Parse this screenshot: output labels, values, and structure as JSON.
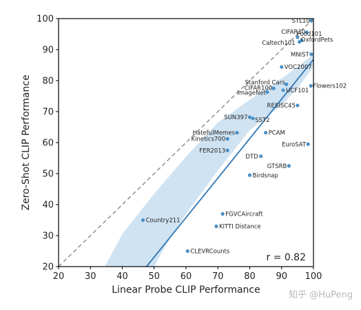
{
  "chart_data": {
    "type": "scatter",
    "xlabel": "Linear Probe CLIP Performance",
    "ylabel": "Zero-Shot CLIP Performance",
    "xlim": [
      20,
      100
    ],
    "ylim": [
      20,
      100
    ],
    "xticks": [
      "20",
      "30",
      "40",
      "50",
      "60",
      "70",
      "80",
      "90",
      "100"
    ],
    "yticks": [
      "20",
      "30",
      "40",
      "50",
      "60",
      "70",
      "80",
      "90",
      "100"
    ],
    "grid": false,
    "annotation": "r = 0.82",
    "reference_line": {
      "style": "dashed",
      "color": "#888888",
      "from": [
        20,
        20
      ],
      "to": [
        100,
        100
      ]
    },
    "fit_line": {
      "color": "#2f77b4",
      "from": [
        47.6,
        20
      ],
      "to": [
        100,
        86.8
      ]
    },
    "confidence_band": {
      "color": "#a9cce8",
      "upper": [
        [
          34.5,
          20
        ],
        [
          40,
          30.5
        ],
        [
          50,
          43.5
        ],
        [
          60,
          55.5
        ],
        [
          70,
          66.5
        ],
        [
          80,
          73.8
        ],
        [
          90,
          80.7
        ],
        [
          95,
          84.5
        ],
        [
          100,
          88.5
        ]
      ],
      "lower": [
        [
          100,
          84.5
        ],
        [
          95,
          77.5
        ],
        [
          90,
          72
        ],
        [
          80,
          64
        ],
        [
          70,
          51
        ],
        [
          60,
          37
        ],
        [
          55,
          29
        ],
        [
          51,
          22
        ],
        [
          50,
          20
        ]
      ]
    },
    "point_color": "#4a90c7",
    "points": [
      {
        "label": "STL10",
        "x": 99.3,
        "y": 99.3
      },
      {
        "label": "CIFAR10",
        "x": 97.9,
        "y": 95.6
      },
      {
        "label": "Food101",
        "x": 95.0,
        "y": 94.0
      },
      {
        "label": "OxfordPets",
        "x": 96.3,
        "y": 93.0
      },
      {
        "label": "Caltech101",
        "x": 95.6,
        "y": 92.5
      },
      {
        "label": "MNIST",
        "x": 99.3,
        "y": 88.5
      },
      {
        "label": "VOC2007",
        "x": 90.0,
        "y": 84.4
      },
      {
        "label": "Stanford Cars",
        "x": 91.5,
        "y": 78.8
      },
      {
        "label": "Flowers102",
        "x": 99.2,
        "y": 78.3
      },
      {
        "label": "CIFAR100",
        "x": 87.5,
        "y": 77.5
      },
      {
        "label": "UCF101",
        "x": 90.5,
        "y": 76.9
      },
      {
        "label": "ImageNet",
        "x": 85.5,
        "y": 76.3
      },
      {
        "label": "RESISC45",
        "x": 95.0,
        "y": 72.0
      },
      {
        "label": "SUN397",
        "x": 80.0,
        "y": 68.2
      },
      {
        "label": "SST2",
        "x": 81.0,
        "y": 67.8
      },
      {
        "label": "HatefulMemes",
        "x": 76.0,
        "y": 63.2
      },
      {
        "label": "PCAM",
        "x": 85.0,
        "y": 63.2
      },
      {
        "label": "Kinetics700",
        "x": 73.0,
        "y": 61.2
      },
      {
        "label": "EuroSAT",
        "x": 98.3,
        "y": 59.5
      },
      {
        "label": "FER2013",
        "x": 73.0,
        "y": 57.5
      },
      {
        "label": "DTD",
        "x": 83.5,
        "y": 55.6
      },
      {
        "label": "GTSRB",
        "x": 92.3,
        "y": 52.5
      },
      {
        "label": "Birdsnap",
        "x": 80.0,
        "y": 49.5
      },
      {
        "label": "FGVCAircraft",
        "x": 71.5,
        "y": 37.0
      },
      {
        "label": "Country211",
        "x": 46.5,
        "y": 35.0
      },
      {
        "label": "KITTI Distance",
        "x": 69.5,
        "y": 33.0
      },
      {
        "label": "CLEVRCounts",
        "x": 60.5,
        "y": 25.0
      }
    ]
  },
  "watermark": "知乎 @HuPeng"
}
